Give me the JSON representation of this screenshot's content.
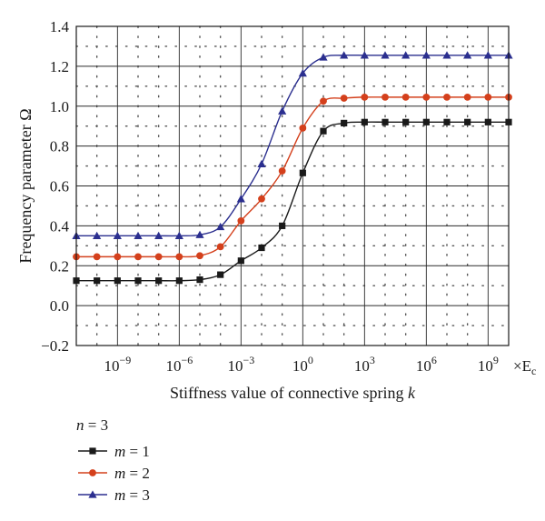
{
  "chart_data": {
    "type": "line",
    "title": "",
    "xlabel": "Stiffness value of connective spring k",
    "xlabel_main": "Stiffness value of connective spring ",
    "xlabel_var": "k",
    "ylabel": "Frequency parameter Ω",
    "x_scale": "log10",
    "x_unit": "×Ec",
    "x_unit_text": "×E",
    "x_unit_sub": "c",
    "xlim": [
      1e-11,
      10000000000.0
    ],
    "ylim": [
      -0.2,
      1.4
    ],
    "grid": true,
    "x_ticks": [
      {
        "value": 1e-09,
        "base": "10",
        "exp": "−9"
      },
      {
        "value": 1e-06,
        "base": "10",
        "exp": "−6"
      },
      {
        "value": 0.001,
        "base": "10",
        "exp": "−3"
      },
      {
        "value": 1,
        "base": "10",
        "exp": "0"
      },
      {
        "value": 1000.0,
        "base": "10",
        "exp": "3"
      },
      {
        "value": 1000000.0,
        "base": "10",
        "exp": "6"
      },
      {
        "value": 1000000000.0,
        "base": "10",
        "exp": "9"
      }
    ],
    "y_ticks": [
      -0.2,
      0.0,
      0.2,
      0.4,
      0.6,
      0.8,
      1.0,
      1.2,
      1.4
    ],
    "y_tick_labels": [
      "−0.2",
      "0.0",
      "0.2",
      "0.4",
      "0.6",
      "0.8",
      "1.0",
      "1.2",
      "1.4"
    ],
    "x": [
      1e-11,
      1e-10,
      1e-09,
      1e-08,
      1e-07,
      1e-06,
      1e-05,
      0.0001,
      0.001,
      0.01,
      0.1,
      1,
      10.0,
      100.0,
      1000.0,
      10000.0,
      100000.0,
      1000000.0,
      10000000.0,
      100000000.0,
      1000000000.0,
      10000000000.0
    ],
    "legend": {
      "placement": "bottom-left",
      "title": "n = 3",
      "title_var": "n",
      "title_rest": " = 3"
    },
    "series": [
      {
        "name": "m = 1",
        "label_var": "m",
        "label_rest": " = 1",
        "color": "#1a1a1a",
        "marker": "square",
        "values": [
          0.125,
          0.125,
          0.125,
          0.125,
          0.125,
          0.125,
          0.13,
          0.155,
          0.225,
          0.29,
          0.4,
          0.665,
          0.875,
          0.915,
          0.92,
          0.92,
          0.92,
          0.92,
          0.92,
          0.92,
          0.92,
          0.92
        ]
      },
      {
        "name": "m = 2",
        "label_var": "m",
        "label_rest": " = 2",
        "color": "#d4401c",
        "marker": "circle",
        "values": [
          0.245,
          0.245,
          0.245,
          0.245,
          0.245,
          0.245,
          0.25,
          0.295,
          0.425,
          0.535,
          0.675,
          0.89,
          1.025,
          1.04,
          1.045,
          1.045,
          1.045,
          1.045,
          1.045,
          1.045,
          1.045,
          1.045
        ]
      },
      {
        "name": "m = 3",
        "label_var": "m",
        "label_rest": " = 3",
        "color": "#2b2f8f",
        "marker": "triangle",
        "values": [
          0.35,
          0.35,
          0.35,
          0.35,
          0.35,
          0.35,
          0.355,
          0.395,
          0.535,
          0.71,
          0.975,
          1.165,
          1.245,
          1.255,
          1.255,
          1.255,
          1.255,
          1.255,
          1.255,
          1.255,
          1.255,
          1.255
        ]
      }
    ]
  }
}
